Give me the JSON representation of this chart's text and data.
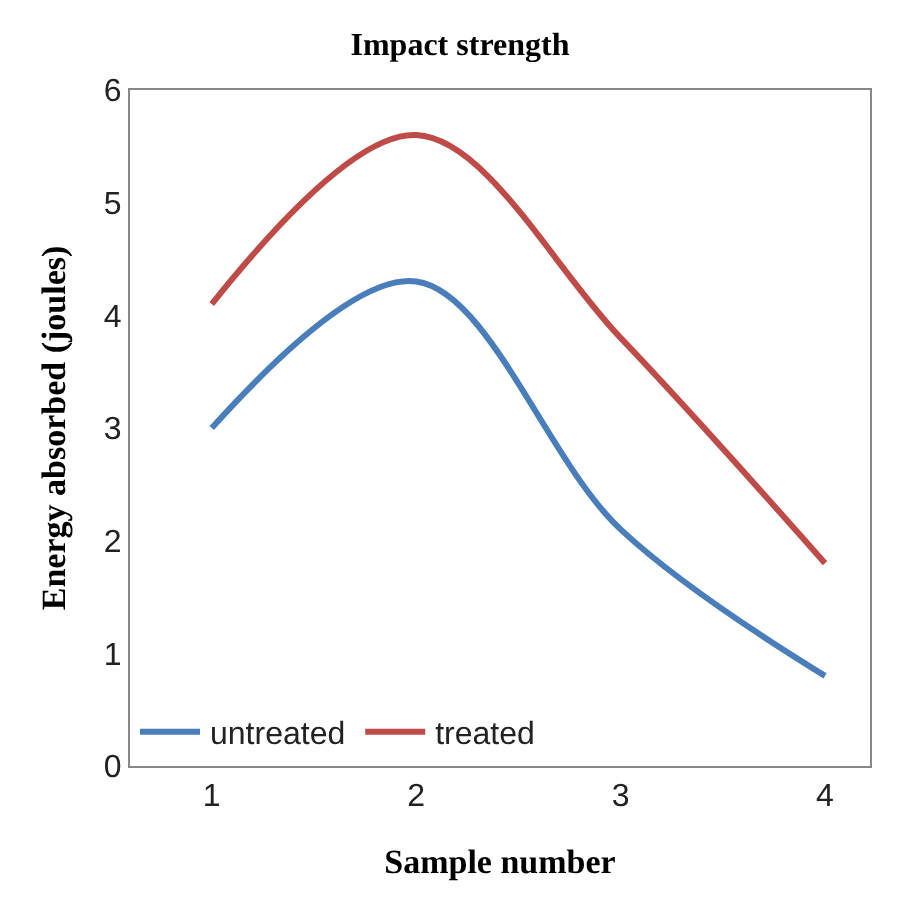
{
  "chart_data": {
    "type": "line",
    "title": "Impact strength",
    "xlabel": "Sample number",
    "ylabel": "Energy absorbed (joules)",
    "categories": [
      "1",
      "2",
      "3",
      "4"
    ],
    "series": [
      {
        "name": "untreated",
        "color": "#4a7ebb",
        "values": [
          3.0,
          4.3,
          2.1,
          0.8
        ]
      },
      {
        "name": "treated",
        "color": "#be4b48",
        "values": [
          4.1,
          5.6,
          3.8,
          1.8
        ]
      }
    ],
    "ylim": [
      0,
      6
    ],
    "yticks": [
      0,
      1,
      2,
      3,
      4,
      5,
      6
    ],
    "grid": false,
    "legend": "bottom left",
    "marker": "none",
    "line_style": "solid"
  }
}
